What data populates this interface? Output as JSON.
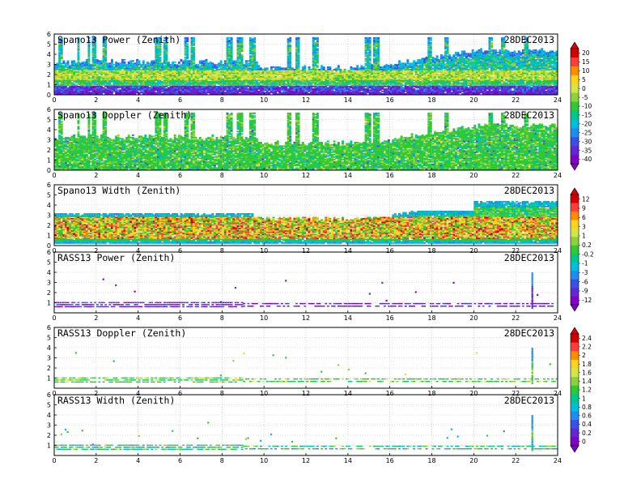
{
  "figure": {
    "date_label": "28DEC2013"
  },
  "chart_data": [
    {
      "type": "heatmap",
      "title": "Spano13 Power (Zenith)",
      "date": "28DEC2013",
      "xlim": [
        0,
        24
      ],
      "ylim": [
        0,
        6
      ],
      "x_ticks": [
        0,
        2,
        4,
        6,
        8,
        10,
        12,
        14,
        16,
        18,
        20,
        22,
        24
      ],
      "y_ticks": [
        0,
        1,
        2,
        3,
        4,
        5,
        6
      ],
      "grid": true,
      "colorbar": {
        "ticks": [
          "20",
          "15",
          "10",
          "5",
          "0",
          "-5",
          "-10",
          "-15",
          "-20",
          "-25",
          "-30",
          "-35",
          "-40"
        ],
        "colors": [
          "#d40000",
          "#ff3c3c",
          "#ff8c00",
          "#ffd21e",
          "#d2e646",
          "#8cd23c",
          "#32c832",
          "#00c88c",
          "#00bedc",
          "#1e8cf0",
          "#3c50e6",
          "#6428d2",
          "#8200c8"
        ]
      },
      "profile": [
        {
          "height_km": [
            0.0,
            0.8
          ],
          "dominant": "purple (~ -35 dB)"
        },
        {
          "height_km": [
            0.8,
            1.4
          ],
          "dominant": "green-cyan (~ -15 dB)"
        },
        {
          "height_km": [
            1.4,
            2.5
          ],
          "dominant": "yellow-green (~ 0 dB)"
        },
        {
          "height_km": [
            2.5,
            4.5
          ],
          "dominant": "cyan/blue (~ -25 dB)"
        }
      ],
      "top_height_km": {
        "x": [
          0,
          9.5,
          10,
          14,
          16,
          20,
          24
        ],
        "y": [
          3.2,
          3.2,
          2.6,
          2.6,
          3.0,
          4.3,
          4.4
        ]
      }
    },
    {
      "type": "heatmap",
      "title": "Spano13 Doppler (Zenith)",
      "date": "28DEC2013",
      "xlim": [
        0,
        24
      ],
      "ylim": [
        0,
        6
      ],
      "x_ticks": [
        0,
        2,
        4,
        6,
        8,
        10,
        12,
        14,
        16,
        18,
        20,
        22,
        24
      ],
      "y_ticks": [
        0,
        1,
        2,
        3,
        4,
        5,
        6
      ],
      "grid": true,
      "dominant": "green (~ 0 to 0.5 m/s)"
    },
    {
      "type": "heatmap",
      "title": "Spano13 Width (Zenith)",
      "date": "28DEC2013",
      "xlim": [
        0,
        24
      ],
      "ylim": [
        0,
        6
      ],
      "x_ticks": [
        0,
        2,
        4,
        6,
        8,
        10,
        12,
        14,
        16,
        18,
        20,
        22,
        24
      ],
      "y_ticks": [
        0,
        1,
        2,
        3,
        4,
        5,
        6
      ],
      "grid": true,
      "colorbar": {
        "ticks": [
          "12",
          "9",
          "6",
          "3",
          "1",
          "0.2",
          "-0.2",
          "-1",
          "-3",
          "-6",
          "-9",
          "-12"
        ],
        "colors": [
          "#d40000",
          "#ff3c3c",
          "#ff8c00",
          "#ffd21e",
          "#d2e646",
          "#8cd23c",
          "#32c832",
          "#00c88c",
          "#00bedc",
          "#1e8cf0",
          "#3c50e6",
          "#6428d2",
          "#8200c8"
        ]
      },
      "dominant": "green/yellow with red patches between 0.8 and 2.8 km"
    },
    {
      "type": "heatmap",
      "title": "RASS13 Power (Zenith)",
      "date": "28DEC2013",
      "xlim": [
        0,
        24
      ],
      "ylim": [
        0,
        6
      ],
      "x_ticks": [
        0,
        2,
        4,
        6,
        8,
        10,
        12,
        14,
        16,
        18,
        20,
        22,
        24
      ],
      "y_ticks": [
        1,
        2,
        3,
        4,
        5,
        6
      ],
      "grid": true,
      "dominant": "purple band at ~0.6-1.0 km"
    },
    {
      "type": "heatmap",
      "title": "RASS13 Doppler (Zenith)",
      "date": "28DEC2013",
      "xlim": [
        0,
        24
      ],
      "ylim": [
        0,
        6
      ],
      "x_ticks": [
        0,
        2,
        4,
        6,
        8,
        10,
        12,
        14,
        16,
        18,
        20,
        22,
        24
      ],
      "y_ticks": [
        1,
        2,
        3,
        4,
        5,
        6
      ],
      "grid": true,
      "colorbar": {
        "ticks": [
          "2.4",
          "2.2",
          "2",
          "1.8",
          "1.6",
          "1.4",
          "1.2",
          "1",
          "0.8",
          "0.6",
          "0.4",
          "0.2",
          "0"
        ],
        "colors": [
          "#d40000",
          "#ff3c3c",
          "#ff8c00",
          "#ffd21e",
          "#d2e646",
          "#8cd23c",
          "#32c832",
          "#00c88c",
          "#00bedc",
          "#1e8cf0",
          "#3c50e6",
          "#6428d2",
          "#8200c8"
        ]
      },
      "dominant": "green band at ~0.6-1.0 km"
    },
    {
      "type": "heatmap",
      "title": "RASS13 Width (Zenith)",
      "date": "28DEC2013",
      "xlim": [
        0,
        24
      ],
      "ylim": [
        0,
        6
      ],
      "x_ticks": [
        0,
        2,
        4,
        6,
        8,
        10,
        12,
        14,
        16,
        18,
        20,
        22,
        24
      ],
      "y_ticks": [
        1,
        2,
        3,
        4,
        5,
        6
      ],
      "grid": true,
      "dominant": "green/cyan band at ~0.6-1.0 km"
    }
  ]
}
